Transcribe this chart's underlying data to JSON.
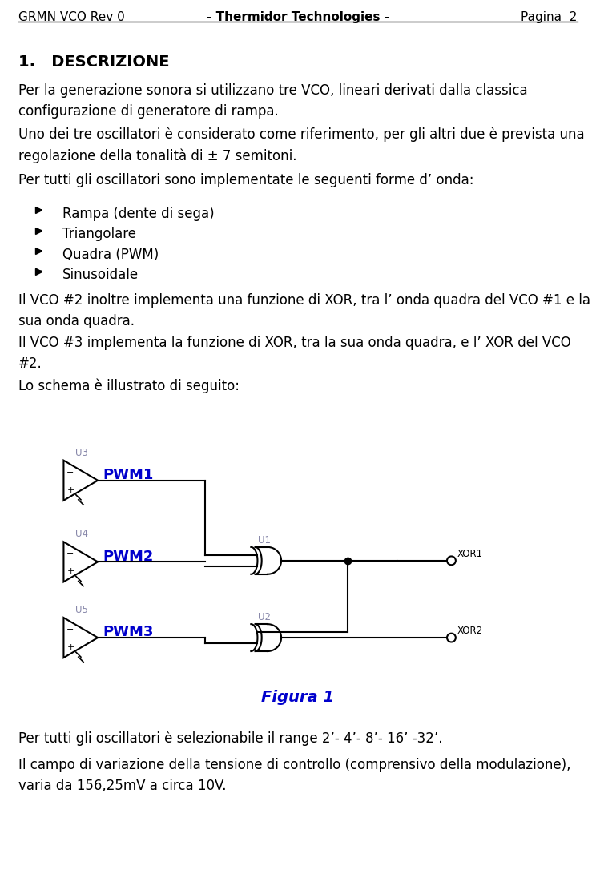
{
  "header_left": "GRMN VCO Rev 0",
  "header_center": "- Thermidor Technologies -",
  "header_right": "Pagina  2",
  "section_title": "1.   DESCRIZIONE",
  "para1": "Per la generazione sonora si utilizzano tre VCO, lineari derivati dalla classica\nconfigurazione di generatore di rampa.",
  "para2": "Uno dei tre oscillatori è considerato come riferimento, per gli altri due è prevista una\nregolazione della tonalità di ± 7 semitoni.",
  "para3": "Per tutti gli oscillatori sono implementate le seguenti forme d’ onda:",
  "bullets": [
    "Rampa (dente di sega)",
    "Triangolare",
    "Quadra (PWM)",
    "Sinusoidale"
  ],
  "para4": "Il VCO #2 inoltre implementa una funzione di XOR, tra l’ onda quadra del VCO #1 e la\nsua onda quadra.",
  "para5": "Il VCO #3 implementa la funzione di XOR, tra la sua onda quadra, e l’ XOR del VCO\n#2.",
  "para6": "Lo schema è illustrato di seguito:",
  "figura_label": "Figura 1",
  "para7": "Per tutti gli oscillatori è selezionabile il range 2’- 4’- 8’- 16’ -32’.",
  "para8": "Il campo di variazione della tensione di controllo (comprensivo della modulazione),\nvaria da 156,25mV a circa 10V.",
  "text_color": "#000000",
  "header_color": "#000000",
  "blue_color": "#0000CC",
  "diagram_color": "#000000",
  "background": "#ffffff",
  "font_size_header": 11,
  "font_size_body": 12,
  "font_size_section": 14,
  "font_size_bullet": 12,
  "comp_label_color": "#1414CC",
  "u_label_color": "#8888AA"
}
